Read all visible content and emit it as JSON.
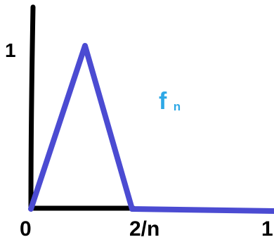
{
  "chart_data": {
    "type": "line",
    "title": "",
    "xlabel": "",
    "ylabel": "",
    "series": [
      {
        "name": "fn",
        "points": [
          {
            "x": "0",
            "y": 0
          },
          {
            "x": "1/n",
            "y": 1
          },
          {
            "x": "2/n",
            "y": 0
          },
          {
            "x": "1",
            "y": 0
          }
        ]
      }
    ],
    "x_tick_labels": [
      "0",
      "2/n",
      "1"
    ],
    "y_tick_labels": [
      "1"
    ],
    "grid": false
  },
  "labels": {
    "y_one": "1",
    "x_zero": "0",
    "x_two_over_n": "2/n",
    "x_one": "1",
    "function_name_base": "f",
    "function_name_subscript": "n"
  },
  "colors": {
    "axis": "#000000",
    "curve": "#4b4bd2",
    "function_label": "#2ea8e6",
    "background": "#ffffff"
  }
}
